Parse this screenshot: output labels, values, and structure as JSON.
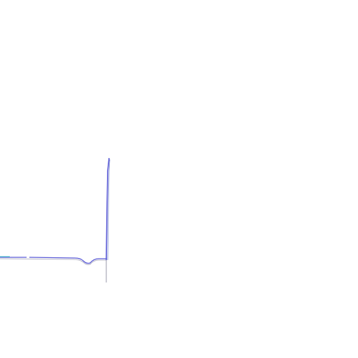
{
  "colors": {
    "background": "#ffffff",
    "trace_primary": "#5a5ad6",
    "trace_secondary": "#7a8ad0",
    "trace_accent": "#3ec6c6",
    "trace_shadow": "#b8b8c8"
  }
}
